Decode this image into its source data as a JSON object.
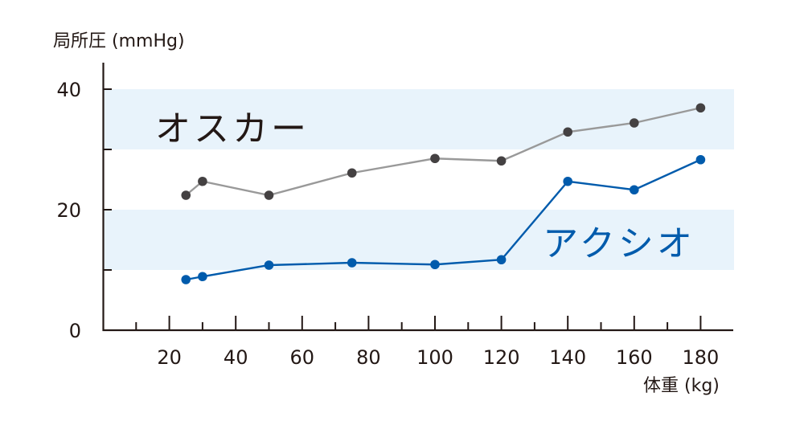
{
  "chart_data": {
    "type": "line",
    "title": "",
    "xlabel": "体重 (kg)",
    "ylabel": "局所圧 (mmHg)",
    "xlim": [
      0,
      190
    ],
    "ylim": [
      0,
      44
    ],
    "x_ticks": [
      20,
      40,
      60,
      80,
      100,
      120,
      140,
      160,
      180
    ],
    "y_ticks": [
      0,
      20,
      40
    ],
    "grid": false,
    "bands": [
      {
        "from": 30,
        "to": 40,
        "color": "#e8f3fb"
      },
      {
        "from": 10,
        "to": 20,
        "color": "#e8f3fb"
      }
    ],
    "series": [
      {
        "name": "オスカー",
        "color": "#999999",
        "marker_color": "#444142",
        "x": [
          25,
          30,
          50,
          75,
          100,
          120,
          140,
          160,
          180
        ],
        "values": [
          22.4,
          24.7,
          22.4,
          26.1,
          28.5,
          28.1,
          32.9,
          34.4,
          36.9
        ]
      },
      {
        "name": "アクシオ",
        "color": "#005bac",
        "marker_color": "#005bac",
        "x": [
          25,
          30,
          50,
          75,
          100,
          120,
          140,
          160,
          180
        ],
        "values": [
          8.4,
          8.9,
          10.8,
          11.2,
          10.9,
          11.7,
          24.7,
          23.3,
          28.3
        ]
      }
    ],
    "annotations": [
      {
        "text": "オスカー",
        "x": 40,
        "y": 35,
        "color": "#231815"
      },
      {
        "text": "アクシオ",
        "x": 160,
        "y": 14.5,
        "color": "#005bac"
      }
    ]
  }
}
